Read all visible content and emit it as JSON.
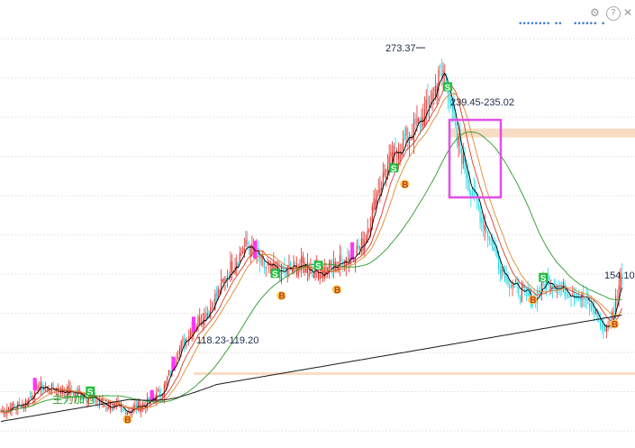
{
  "chart_data": {
    "type": "candlestick",
    "title": "",
    "xlabel": "",
    "ylabel": "",
    "ylim": [
      85,
      285
    ],
    "grid": true,
    "price_annotations": {
      "high": "273.37",
      "low": "154.10",
      "zone_upper": "239.45-235.02",
      "zone_lower": "118.23-119.20"
    },
    "zones": [
      {
        "low": 235.02,
        "high": 239.45,
        "color": "#f8dcc4"
      },
      {
        "low": 118.23,
        "high": 119.2,
        "color": "#f8dcc4"
      }
    ],
    "overlay_text": "主力加仓",
    "signals": [
      {
        "type": "S",
        "index": 58,
        "price": 110
      },
      {
        "type": "B",
        "index": 82,
        "price": 96
      },
      {
        "type": "S",
        "index": 178,
        "price": 168
      },
      {
        "type": "B",
        "index": 182,
        "price": 157
      },
      {
        "type": "S",
        "index": 206,
        "price": 172
      },
      {
        "type": "B",
        "index": 218,
        "price": 160
      },
      {
        "type": "S",
        "index": 255,
        "price": 220
      },
      {
        "type": "B",
        "index": 262,
        "price": 212
      },
      {
        "type": "S",
        "index": 290,
        "price": 260
      },
      {
        "type": "B",
        "index": 345,
        "price": 155
      },
      {
        "type": "S",
        "index": 352,
        "price": 166
      },
      {
        "type": "B",
        "index": 398,
        "price": 143
      }
    ],
    "anchors": [
      [
        0,
        100
      ],
      [
        15,
        104
      ],
      [
        25,
        112
      ],
      [
        40,
        110
      ],
      [
        55,
        108
      ],
      [
        65,
        104
      ],
      [
        80,
        100
      ],
      [
        95,
        104
      ],
      [
        105,
        110
      ],
      [
        115,
        130
      ],
      [
        125,
        142
      ],
      [
        135,
        150
      ],
      [
        150,
        172
      ],
      [
        160,
        182
      ],
      [
        170,
        172
      ],
      [
        180,
        168
      ],
      [
        195,
        172
      ],
      [
        210,
        168
      ],
      [
        225,
        176
      ],
      [
        235,
        182
      ],
      [
        245,
        210
      ],
      [
        255,
        226
      ],
      [
        265,
        236
      ],
      [
        275,
        246
      ],
      [
        285,
        266
      ],
      [
        290,
        262
      ],
      [
        295,
        236
      ],
      [
        305,
        210
      ],
      [
        315,
        190
      ],
      [
        325,
        170
      ],
      [
        335,
        160
      ],
      [
        345,
        155
      ],
      [
        355,
        165
      ],
      [
        365,
        160
      ],
      [
        375,
        158
      ],
      [
        385,
        150
      ],
      [
        390,
        141
      ],
      [
        396,
        144
      ],
      [
        402,
        166
      ]
    ],
    "legend": [
      {
        "color": "#3a7bd5"
      },
      {
        "color": "#3a7bd5"
      },
      {
        "color": "#3a7bd5"
      },
      {
        "color": "#3a7bd5"
      }
    ],
    "colors": {
      "up": "#e0302b",
      "down": "#21d7e7",
      "boost": "#ff33ff",
      "ma_short": "#000000",
      "ma_mid": "#d83b2a",
      "ma_mid2": "#e08a2e",
      "ma_long": "#2a9a2a",
      "ma_very_long": "#1a1a1a",
      "box": "#e14fe5"
    }
  },
  "toolbar": {
    "legend_glyphs": "••••••••  ••",
    "legend_glyphs2": "••••••  •"
  }
}
